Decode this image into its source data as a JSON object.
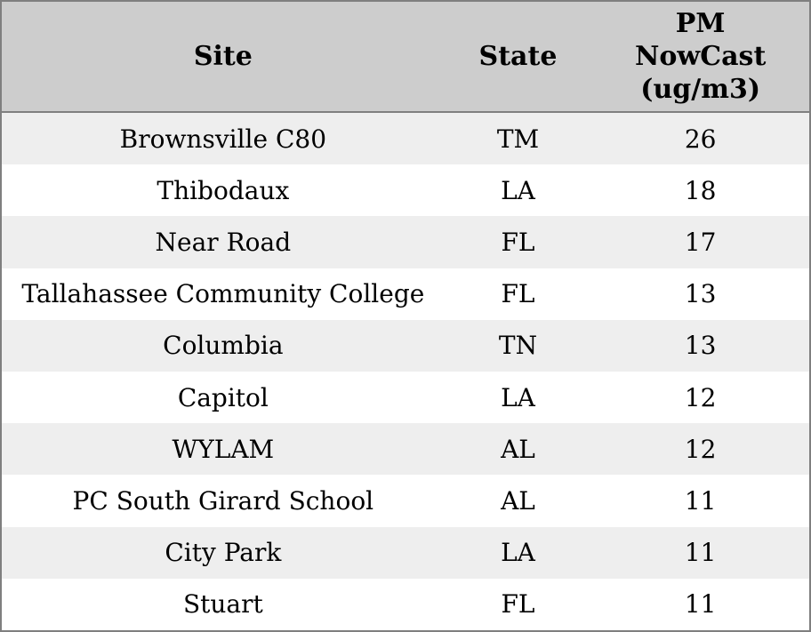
{
  "table": {
    "header": {
      "site": "Site",
      "state": "State",
      "pm_nowcast": "PM\nNowCast\n(ug/m3)"
    }
  },
  "chart_data": {
    "type": "table",
    "columns": [
      "Site",
      "State",
      "PM NowCast (ug/m3)"
    ],
    "rows": [
      {
        "site": "Brownsville C80",
        "state": "TM",
        "pm_nowcast": 26
      },
      {
        "site": "Thibodaux",
        "state": "LA",
        "pm_nowcast": 18
      },
      {
        "site": "Near Road",
        "state": "FL",
        "pm_nowcast": 17
      },
      {
        "site": "Tallahassee Community College",
        "state": "FL",
        "pm_nowcast": 13
      },
      {
        "site": "Columbia",
        "state": "TN",
        "pm_nowcast": 13
      },
      {
        "site": "Capitol",
        "state": "LA",
        "pm_nowcast": 12
      },
      {
        "site": "WYLAM",
        "state": "AL",
        "pm_nowcast": 12
      },
      {
        "site": "PC South Girard School",
        "state": "AL",
        "pm_nowcast": 11
      },
      {
        "site": "City Park",
        "state": "LA",
        "pm_nowcast": 11
      },
      {
        "site": "Stuart",
        "state": "FL",
        "pm_nowcast": 11
      }
    ]
  },
  "colors": {
    "header_bg": "#cdcdcd",
    "row_stripe_bg": "#eeeeee",
    "row_bg": "#ffffff",
    "border": "#7f7f7f",
    "text": "#000000"
  }
}
